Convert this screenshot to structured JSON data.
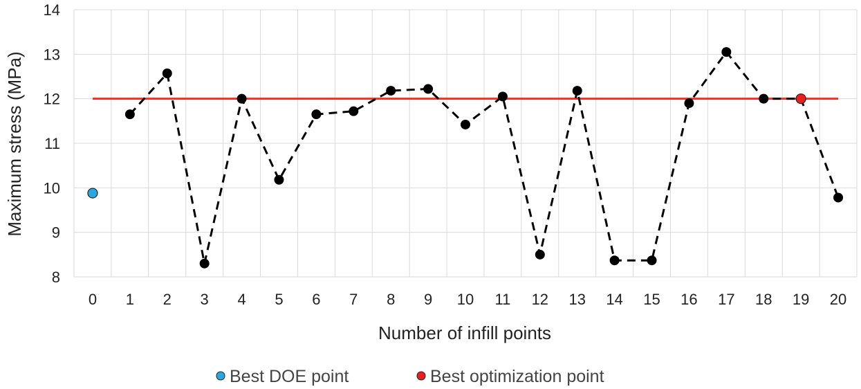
{
  "chart_data": {
    "type": "line",
    "xlabel": "Number of infill points",
    "ylabel": "Maximum stress (MPa)",
    "ylim": [
      8,
      14
    ],
    "grid": true,
    "x_ticks": [
      0,
      1,
      2,
      3,
      4,
      5,
      6,
      7,
      8,
      9,
      10,
      11,
      12,
      13,
      14,
      15,
      16,
      17,
      18,
      19,
      20
    ],
    "y_ticks": [
      8,
      9,
      10,
      11,
      12,
      13,
      14
    ],
    "series": [
      {
        "style": "dashed",
        "color": "#000000",
        "x": [
          1,
          2,
          3,
          4,
          5,
          6,
          7,
          8,
          9,
          10,
          11,
          12,
          13,
          14,
          15,
          16,
          17,
          18,
          19,
          20
        ],
        "y": [
          11.65,
          12.57,
          8.3,
          12.0,
          10.18,
          11.65,
          11.72,
          12.18,
          12.22,
          11.42,
          12.05,
          8.5,
          12.18,
          8.37,
          8.37,
          11.9,
          13.05,
          12.0,
          12.0,
          9.78
        ]
      }
    ],
    "reference_line": {
      "y": 12.0,
      "x_from": 0,
      "x_to": 20,
      "color": "#ff2a1a"
    },
    "highlight_points": [
      {
        "name": "Best DOE point",
        "x": 0,
        "y": 9.88,
        "color": "#29a8e0"
      },
      {
        "name": "Best optimization point",
        "x": 19,
        "y": 12.0,
        "color": "#e82020"
      }
    ],
    "legend": {
      "placement": "bottom",
      "items": [
        {
          "label": "Best DOE point",
          "color": "#29a8e0"
        },
        {
          "label": "Best optimization point",
          "color": "#e82020"
        }
      ]
    }
  }
}
